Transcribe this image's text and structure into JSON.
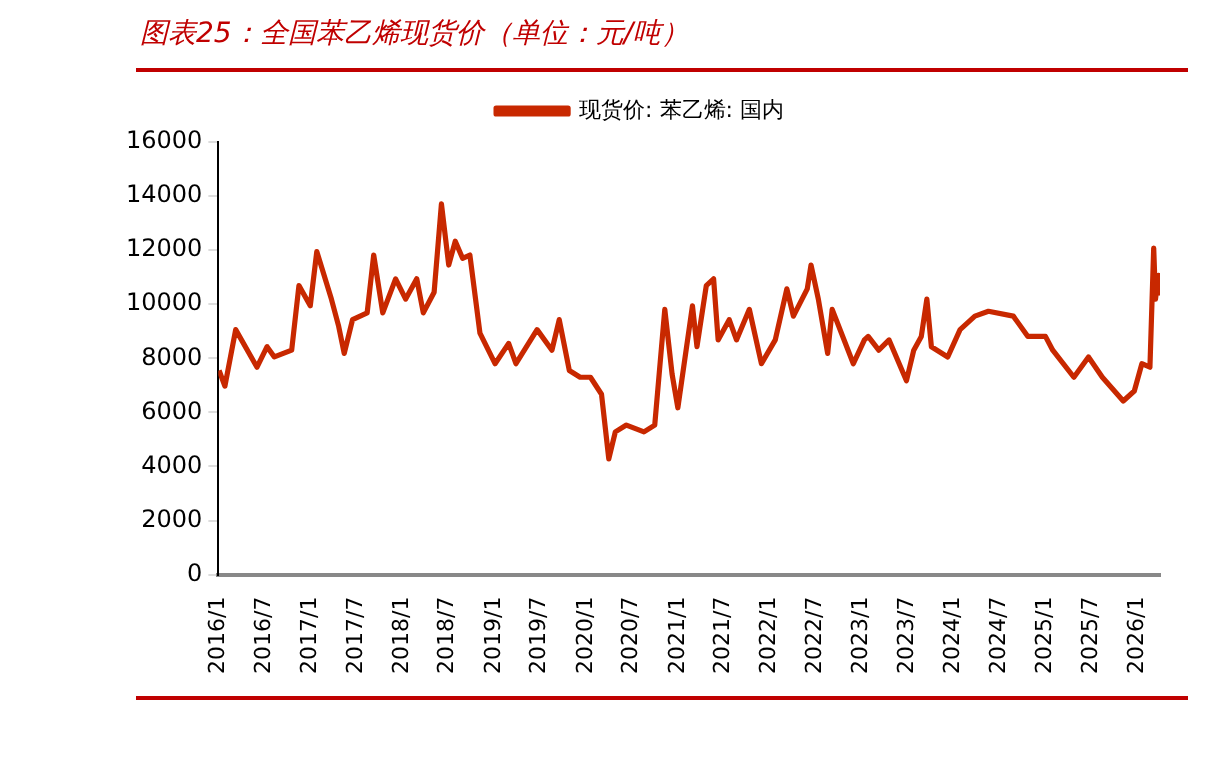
{
  "chart_data": {
    "type": "line",
    "title": "图表25：全国苯乙烯现货价（单位：元/吨）",
    "x": [
      "2016-01-04",
      "2016-01-27",
      "2016-03-10",
      "2016-06-03",
      "2016-07-13",
      "2016-08-11",
      "2016-10-19",
      "2016-11-17",
      "2017-01-01",
      "2017-01-27",
      "2017-03-26",
      "2017-04-24",
      "2017-05-16",
      "2017-06-18",
      "2017-08-15",
      "2017-09-10",
      "2017-10-16",
      "2017-12-06",
      "2018-01-15",
      "2018-02-28",
      "2018-03-26",
      "2018-05-08",
      "2018-06-06",
      "2018-07-05",
      "2018-07-31",
      "2018-08-29",
      "2018-09-27",
      "2018-11-06",
      "2019-01-05",
      "2019-02-28",
      "2019-03-29",
      "2019-06-21",
      "2019-08-19",
      "2019-09-17",
      "2019-10-27",
      "2019-12-09",
      "2020-01-19",
      "2020-03-03",
      "2020-04-01",
      "2020-04-27",
      "2020-06-10",
      "2020-08-19",
      "2020-10-01",
      "2020-11-10",
      "2020-12-09",
      "2021-01-01",
      "2021-02-28",
      "2021-03-18",
      "2021-04-24",
      "2021-05-23",
      "2021-06-10",
      "2021-07-24",
      "2021-08-22",
      "2021-10-12",
      "2021-11-29",
      "2022-01-23",
      "2022-03-10",
      "2022-04-05",
      "2022-05-30",
      "2022-06-14",
      "2022-07-13",
      "2022-08-19",
      "2022-09-06",
      "2022-11-29",
      "2023-01-12",
      "2023-01-27",
      "2023-03-10",
      "2023-04-20",
      "2023-06-28",
      "2023-07-27",
      "2023-08-26",
      "2023-09-17",
      "2023-10-05",
      "2023-12-09",
      "2024-01-27",
      "2024-03-26",
      "2024-05-19",
      "2024-08-26",
      "2024-10-23",
      "2025-01-01",
      "2025-01-30",
      "2025-04-24",
      "2025-06-21",
      "2025-08-15",
      "2025-11-06",
      "2025-12-20",
      "2026-01-19",
      "2026-02-20",
      "2026-03-07",
      "2026-03-14",
      "2026-03-26",
      "2026-04-01"
    ],
    "series": [
      {
        "name": "现货价: 苯乙烯: 国内",
        "color": "#c82800",
        "values": [
          7550,
          6970,
          9060,
          7670,
          8430,
          8050,
          8300,
          10690,
          9940,
          11950,
          10190,
          9180,
          8180,
          9430,
          9680,
          11820,
          9680,
          10940,
          10190,
          10940,
          9680,
          10440,
          13710,
          11450,
          12330,
          11700,
          11820,
          8930,
          7800,
          8550,
          7800,
          9060,
          8300,
          9430,
          7550,
          7300,
          7300,
          6670,
          4280,
          5280,
          5530,
          5280,
          5530,
          9810,
          7420,
          6170,
          9940,
          8430,
          10690,
          10940,
          8680,
          9430,
          8680,
          9810,
          7800,
          8680,
          10570,
          9560,
          10570,
          11450,
          10190,
          8180,
          9810,
          7800,
          8680,
          8810,
          8300,
          8680,
          7170,
          8300,
          8810,
          10190,
          8430,
          8050,
          9060,
          9560,
          9740,
          9560,
          8810,
          8810,
          8300,
          7300,
          8050,
          7300,
          6420,
          6790,
          7800,
          7670,
          12080,
          10190,
          11070,
          10320
        ]
      }
    ],
    "xlim": [
      "2016-01",
      "2026-04"
    ],
    "xticks": [
      {
        "value": "2016-01",
        "label": "2016/1"
      },
      {
        "value": "2016-07",
        "label": "2016/7"
      },
      {
        "value": "2017-01",
        "label": "2017/1"
      },
      {
        "value": "2017-07",
        "label": "2017/7"
      },
      {
        "value": "2018-01",
        "label": "2018/1"
      },
      {
        "value": "2018-07",
        "label": "2018/7"
      },
      {
        "value": "2019-01",
        "label": "2019/1"
      },
      {
        "value": "2019-07",
        "label": "2019/7"
      },
      {
        "value": "2020-01",
        "label": "2020/1"
      },
      {
        "value": "2020-07",
        "label": "2020/7"
      },
      {
        "value": "2021-01",
        "label": "2021/1"
      },
      {
        "value": "2021-07",
        "label": "2021/7"
      },
      {
        "value": "2022-01",
        "label": "2022/1"
      },
      {
        "value": "2022-07",
        "label": "2022/7"
      },
      {
        "value": "2023-01",
        "label": "2023/1"
      },
      {
        "value": "2023-07",
        "label": "2023/7"
      },
      {
        "value": "2024-01",
        "label": "2024/1"
      },
      {
        "value": "2024-07",
        "label": "2024/7"
      },
      {
        "value": "2025-01",
        "label": "2025/1"
      },
      {
        "value": "2025-07",
        "label": "2025/7"
      },
      {
        "value": "2026-01",
        "label": "2026/1"
      }
    ],
    "ylim": [
      0,
      16000
    ],
    "yticks": [
      0,
      2000,
      4000,
      6000,
      8000,
      10000,
      12000,
      14000,
      16000
    ],
    "grid": false,
    "legend": "top",
    "marker": "none",
    "line_style": "solid"
  }
}
